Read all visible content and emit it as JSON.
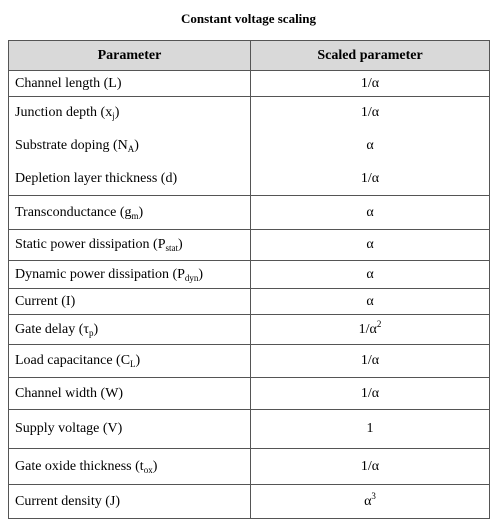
{
  "header": {
    "title": "Constant voltage scaling"
  },
  "table": {
    "columns": [
      "Parameter",
      "Scaled parameter"
    ],
    "rows": [
      {
        "parameter": [
          "Channel length (L)"
        ],
        "scaled": [
          "1/α"
        ]
      },
      {
        "parameter": [
          "Junction depth (x",
          {
            "sub": "j"
          },
          ")"
        ],
        "scaled": [
          "1/α"
        ]
      },
      {
        "parameter": [
          "Substrate doping (N",
          {
            "sub": "A"
          },
          ")"
        ],
        "scaled": [
          "α"
        ]
      },
      {
        "parameter": [
          "Depletion layer thickness (d)"
        ],
        "scaled": [
          "1/α"
        ]
      },
      {
        "parameter": [
          "Transconductance (g",
          {
            "sub": "m"
          },
          ")"
        ],
        "scaled": [
          "α"
        ]
      },
      {
        "parameter": [
          "Static power dissipation (P",
          {
            "sub": "stat"
          },
          ")"
        ],
        "scaled": [
          "α"
        ]
      },
      {
        "parameter": [
          "Dynamic power dissipation (P",
          {
            "sub": "dyn"
          },
          ")"
        ],
        "scaled": [
          "α"
        ]
      },
      {
        "parameter": [
          "Current (I)"
        ],
        "scaled": [
          "α"
        ]
      },
      {
        "parameter": [
          "Gate delay (τ",
          {
            "sub": "p"
          },
          ")"
        ],
        "scaled": [
          "1/α",
          {
            "sup": "2"
          }
        ]
      },
      {
        "parameter": [
          "Load capacitance (C",
          {
            "sub": "L"
          },
          ")"
        ],
        "scaled": [
          "1/α"
        ]
      },
      {
        "parameter": [
          "Channel width (W)"
        ],
        "scaled": [
          "1/α"
        ]
      },
      {
        "parameter": [
          "Supply voltage (V)"
        ],
        "scaled": [
          "1"
        ]
      },
      {
        "parameter": [
          "Gate oxide thickness (t",
          {
            "sub": "ox"
          },
          ")"
        ],
        "scaled": [
          "1/α"
        ]
      },
      {
        "parameter": [
          "Current density (J)"
        ],
        "scaled": [
          "α",
          {
            "sup": "3"
          }
        ]
      }
    ]
  }
}
